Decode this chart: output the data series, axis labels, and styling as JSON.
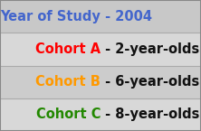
{
  "rows": [
    {
      "colored_text": "Year of Study",
      "colored_color": "#4466cc",
      "rest_text": " - 2004",
      "rest_color": "#4466cc",
      "bg_color": "#c8c8c8",
      "border_color": "#aaaaaa"
    },
    {
      "colored_text": "Cohort A",
      "colored_color": "#ff0000",
      "rest_text": " - 2-year-olds",
      "rest_color": "#111111",
      "bg_color": "#d8d8d8",
      "border_color": "#aaaaaa"
    },
    {
      "colored_text": "Cohort B",
      "colored_color": "#ff9900",
      "rest_text": " - 6-year-olds",
      "rest_color": "#111111",
      "bg_color": "#cccccc",
      "border_color": "#aaaaaa"
    },
    {
      "colored_text": "Cohort C",
      "colored_color": "#228800",
      "rest_text": " - 8-year-olds",
      "rest_color": "#111111",
      "bg_color": "#d8d8d8",
      "border_color": "#aaaaaa"
    }
  ],
  "n_rows": 4,
  "font_size": 10.5,
  "font_weight": "bold",
  "font_family": "DejaVu Sans",
  "fig_bg": "#aaaaaa"
}
